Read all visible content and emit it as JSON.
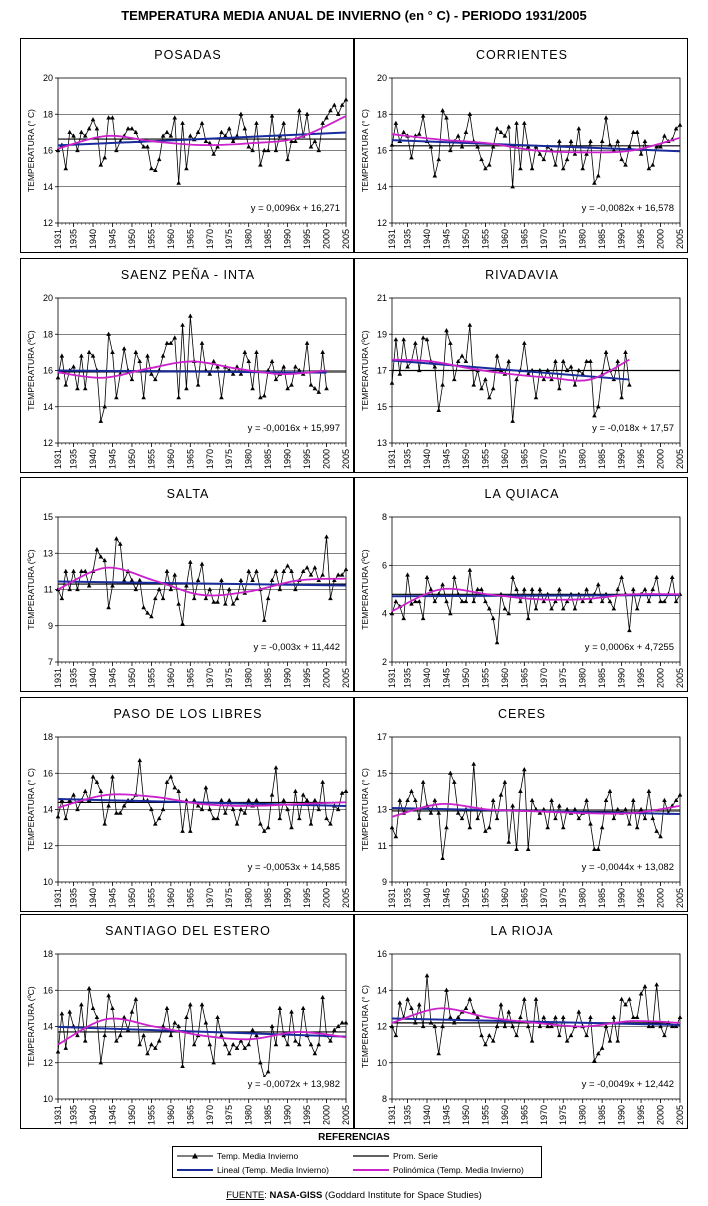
{
  "title": "TEMPERATURA MEDIA ANUAL DE INVIERNO (en ° C) - PERIODO 1931/2005",
  "colors": {
    "series": "#000000",
    "mean": "#000000",
    "linear": "#1a2c9c",
    "poly": "#cc22cc",
    "grid": "#000000"
  },
  "references": {
    "title": "REFERENCIAS",
    "items": [
      {
        "label": "Temp. Media Invierno",
        "style": "triangle-line"
      },
      {
        "label": "Prom. Serie",
        "style": "black-line"
      },
      {
        "label": "Lineal (Temp. Media Invierno)",
        "style": "blue-line"
      },
      {
        "label": "Polinómica (Temp. Media Invierno)",
        "style": "magenta-line"
      }
    ]
  },
  "source": {
    "label": "FUENTE",
    "sep": ": ",
    "org": "NASA-GISS",
    "desc": " (Goddard Institute for Space Studies)"
  },
  "xticks": [
    "1931",
    "1935",
    "1940",
    "1945",
    "1950",
    "1955",
    "1960",
    "1965",
    "1970",
    "1975",
    "1980",
    "1985",
    "1990",
    "1995",
    "2000",
    "2005"
  ],
  "chart_data": [
    {
      "type": "line",
      "title": "POSADAS",
      "ylabel": "TEMPERATURA (° C)",
      "ylim": [
        12,
        20
      ],
      "yticks": [
        12,
        14,
        16,
        18,
        20
      ],
      "equation": "y = 0,0096x + 16,271",
      "x_start": 1931,
      "mean": 16.63,
      "linear": [
        16.28,
        16.99
      ],
      "poly": [
        16.1,
        16.8,
        16.5,
        16.3,
        16.4,
        16.7,
        17.9
      ],
      "values": [
        16.0,
        16.3,
        15.0,
        17.0,
        16.8,
        16.0,
        17.0,
        16.8,
        17.2,
        17.7,
        17.2,
        15.2,
        15.6,
        17.8,
        17.8,
        16.0,
        16.5,
        16.8,
        17.2,
        17.2,
        17.0,
        16.5,
        16.2,
        16.2,
        15.0,
        14.9,
        15.5,
        16.8,
        17.0,
        16.8,
        17.8,
        14.2,
        17.5,
        15.0,
        16.8,
        16.6,
        17.0,
        17.5,
        16.5,
        16.4,
        15.8,
        16.2,
        17.0,
        16.8,
        17.2,
        16.5,
        16.8,
        18.0,
        17.2,
        16.2,
        16.0,
        17.5,
        15.2,
        16.0,
        16.0,
        17.9,
        16.0,
        16.8,
        17.5,
        15.5,
        16.5,
        16.5,
        18.2,
        16.8,
        18.0,
        16.2,
        16.5,
        16.0,
        17.5,
        17.8,
        18.2,
        18.5,
        18.0,
        18.5,
        18.8
      ]
    },
    {
      "type": "line",
      "title": "CORRIENTES",
      "ylabel": "TEMPERATURA (° C)",
      "ylim": [
        12,
        20
      ],
      "yticks": [
        12,
        14,
        16,
        18,
        20
      ],
      "equation": "y = -0,0082x + 16,578",
      "x_start": 1931,
      "mean": 16.26,
      "linear": [
        16.57,
        15.96
      ],
      "poly": [
        16.9,
        16.6,
        16.4,
        16.0,
        15.9,
        16.0,
        16.7
      ],
      "values": [
        16.3,
        17.5,
        16.5,
        17.0,
        16.8,
        15.6,
        16.8,
        16.9,
        17.9,
        16.5,
        16.2,
        14.6,
        15.5,
        18.2,
        17.8,
        16.0,
        16.5,
        16.8,
        16.2,
        17.0,
        18.0,
        16.5,
        16.2,
        15.5,
        15.0,
        15.2,
        16.2,
        17.2,
        17.0,
        16.8,
        17.3,
        14.0,
        17.5,
        15.0,
        17.5,
        16.2,
        15.0,
        16.2,
        15.8,
        15.5,
        16.2,
        16.0,
        15.2,
        16.5,
        15.0,
        15.5,
        16.5,
        15.8,
        17.2,
        15.0,
        15.8,
        16.5,
        14.2,
        14.6,
        16.5,
        17.8,
        16.3,
        16.0,
        16.5,
        15.5,
        15.2,
        16.2,
        17.0,
        17.0,
        15.8,
        16.5,
        15.0,
        15.2,
        16.2,
        16.2,
        16.8,
        16.5,
        16.6,
        17.2,
        17.4
      ]
    },
    {
      "type": "line",
      "title": "SAENZ PEÑA - INTA",
      "ylabel": "TEMPERATURA (ºC)",
      "ylim": [
        12,
        20
      ],
      "yticks": [
        12,
        14,
        16,
        18,
        20
      ],
      "equation": "y = -0,0016x + 15,997",
      "x_start": 1931,
      "mean": 15.92,
      "linear": [
        16.0,
        15.88
      ],
      "poly": [
        15.9,
        15.6,
        16.1,
        16.5,
        16.1,
        15.8,
        16.0
      ],
      "values": [
        15.6,
        16.8,
        15.2,
        16.0,
        16.2,
        15.0,
        16.8,
        15.0,
        17.0,
        16.8,
        16.0,
        13.2,
        14.0,
        18.0,
        17.0,
        14.5,
        15.8,
        17.2,
        16.0,
        15.5,
        17.0,
        16.5,
        14.5,
        16.8,
        15.8,
        15.5,
        16.0,
        16.8,
        17.5,
        17.5,
        17.8,
        14.5,
        18.5,
        15.0,
        19.0,
        16.5,
        15.2,
        17.5,
        16.0,
        15.8,
        16.5,
        16.2,
        14.5,
        16.2,
        16.0,
        15.8,
        16.2,
        15.8,
        17.0,
        16.5,
        15.0,
        17.0,
        14.5,
        14.6,
        16.0,
        16.5,
        15.5,
        15.8,
        16.2,
        15.0,
        15.2,
        16.2,
        16.0,
        15.8,
        17.5,
        15.2,
        15.0,
        14.8,
        17.0,
        15.0
      ]
    },
    {
      "type": "line",
      "title": "RIVADAVIA",
      "ylabel": "TEMPERATURA (ºC)",
      "ylim": [
        13,
        21
      ],
      "yticks": [
        13,
        15,
        17,
        19,
        21
      ],
      "equation": "y = -0,018x + 17,57",
      "x_start": 1931,
      "mean": 17.0,
      "linear": [
        17.55,
        16.5
      ],
      "poly": [
        17.6,
        17.5,
        17.1,
        16.8,
        16.6,
        16.5,
        17.6
      ],
      "values": [
        16.3,
        18.7,
        16.8,
        18.7,
        17.2,
        17.5,
        18.5,
        17.0,
        18.8,
        18.7,
        17.5,
        17.2,
        14.8,
        16.2,
        19.2,
        18.5,
        16.5,
        17.5,
        17.8,
        17.5,
        19.5,
        16.2,
        17.0,
        16.0,
        16.5,
        15.5,
        16.0,
        17.8,
        17.0,
        16.8,
        17.5,
        14.2,
        16.5,
        17.0,
        18.5,
        16.8,
        17.0,
        15.5,
        17.0,
        16.5,
        17.0,
        16.5,
        17.5,
        16.0,
        17.5,
        17.0,
        17.2,
        16.2,
        17.0,
        16.8,
        17.5,
        17.5,
        14.5,
        15.0,
        16.8,
        18.0,
        17.0,
        16.5,
        17.5,
        15.5,
        18.0,
        16.2
      ]
    },
    {
      "type": "line",
      "title": "SALTA",
      "ylabel": "TEMPERATURA (ºC)",
      "ylim": [
        7,
        15
      ],
      "yticks": [
        7,
        9,
        11,
        13,
        15
      ],
      "equation": "y = -0,003x + 11,442",
      "x_start": 1931,
      "mean": 11.3,
      "linear": [
        11.44,
        11.22
      ],
      "poly": [
        11.0,
        12.2,
        11.5,
        10.7,
        10.9,
        11.5,
        11.6
      ],
      "values": [
        11.0,
        10.5,
        12.0,
        11.0,
        12.0,
        11.0,
        12.0,
        12.0,
        11.2,
        12.0,
        13.2,
        12.8,
        12.6,
        10.0,
        11.2,
        13.8,
        13.5,
        11.5,
        12.0,
        11.5,
        11.0,
        11.5,
        10.0,
        9.7,
        9.5,
        10.5,
        11.0,
        10.5,
        12.0,
        11.0,
        11.8,
        10.2,
        9.1,
        11.2,
        12.5,
        10.5,
        11.5,
        12.4,
        10.5,
        11.0,
        10.3,
        10.3,
        11.5,
        10.2,
        11.0,
        10.2,
        10.5,
        11.5,
        10.8,
        12.0,
        11.5,
        12.0,
        11.0,
        9.3,
        10.5,
        11.5,
        12.0,
        11.0,
        12.0,
        12.3,
        12.0,
        11.0,
        11.5,
        12.0,
        12.2,
        11.8,
        12.2,
        11.5,
        11.8,
        13.9,
        10.5,
        11.5,
        11.8,
        11.8,
        12.1
      ]
    },
    {
      "type": "line",
      "title": "LA QUIACA",
      "ylabel": "TEMPERATURA (ºC)",
      "ylim": [
        2,
        8
      ],
      "yticks": [
        2,
        4,
        6,
        8
      ],
      "equation": "y = 0,0006x + 4,7255",
      "x_start": 1931,
      "mean": 4.8,
      "linear": [
        4.72,
        4.77
      ],
      "poly": [
        4.1,
        5.0,
        4.8,
        4.6,
        4.6,
        4.8,
        4.8
      ],
      "values": [
        4.0,
        4.5,
        4.3,
        3.8,
        5.6,
        4.4,
        4.5,
        4.5,
        3.8,
        5.5,
        5.0,
        4.5,
        4.8,
        5.2,
        4.5,
        4.0,
        5.5,
        4.8,
        4.5,
        4.5,
        5.8,
        4.5,
        5.0,
        5.0,
        4.5,
        4.2,
        3.8,
        2.8,
        4.8,
        4.2,
        4.0,
        5.5,
        5.0,
        4.5,
        5.0,
        3.8,
        5.0,
        4.2,
        5.0,
        4.5,
        4.8,
        4.2,
        4.5,
        5.0,
        4.2,
        4.5,
        4.8,
        4.2,
        4.8,
        4.5,
        5.0,
        4.5,
        4.8,
        5.2,
        4.5,
        4.8,
        4.5,
        4.2,
        5.0,
        5.5,
        4.8,
        3.3,
        5.0,
        4.2,
        4.8,
        5.0,
        4.5,
        5.0,
        5.5,
        4.5,
        4.5,
        4.8,
        5.5,
        4.5,
        4.8
      ]
    },
    {
      "type": "line",
      "title": "PASO DE LOS LIBRES",
      "ylabel": "TEMPERATURA (° C)",
      "ylim": [
        10,
        18
      ],
      "yticks": [
        10,
        12,
        14,
        16,
        18
      ],
      "equation": "y = -0,0053x + 14,585",
      "x_start": 1931,
      "mean": 14.39,
      "linear": [
        14.58,
        14.19
      ],
      "poly": [
        14.1,
        14.8,
        14.7,
        14.3,
        14.2,
        14.3,
        14.4
      ],
      "values": [
        13.6,
        14.5,
        13.5,
        14.5,
        14.8,
        14.0,
        14.5,
        15.0,
        14.5,
        15.8,
        15.5,
        15.0,
        13.2,
        14.2,
        15.8,
        13.8,
        13.8,
        14.2,
        14.5,
        14.5,
        14.8,
        16.7,
        14.5,
        14.5,
        14.0,
        13.2,
        13.5,
        14.0,
        15.5,
        15.8,
        15.2,
        15.0,
        12.8,
        14.5,
        12.8,
        14.5,
        14.2,
        14.0,
        15.2,
        14.0,
        13.5,
        13.5,
        14.5,
        13.8,
        14.5,
        14.0,
        13.2,
        14.0,
        13.8,
        14.5,
        14.2,
        14.5,
        13.2,
        12.8,
        13.0,
        14.8,
        16.3,
        13.5,
        14.5,
        14.0,
        13.0,
        15.0,
        13.5,
        14.8,
        14.5,
        13.2,
        14.5,
        14.0,
        15.5,
        13.5,
        13.2,
        14.2,
        14.0,
        14.9,
        15.0
      ]
    },
    {
      "type": "line",
      "title": "CERES",
      "ylabel": "TEMPERATURA (° C)",
      "ylim": [
        9,
        17
      ],
      "yticks": [
        9,
        11,
        13,
        15,
        17
      ],
      "equation": "y = -0,0044x + 13,082",
      "x_start": 1931,
      "mean": 12.92,
      "linear": [
        13.08,
        12.75
      ],
      "poly": [
        12.6,
        13.3,
        13.0,
        12.9,
        12.8,
        12.8,
        13.2
      ],
      "values": [
        12.0,
        11.5,
        13.5,
        12.8,
        13.5,
        14.0,
        13.5,
        12.5,
        14.5,
        13.2,
        12.8,
        13.5,
        12.8,
        10.3,
        12.0,
        15.0,
        14.5,
        12.8,
        12.5,
        13.0,
        12.0,
        15.5,
        12.5,
        13.0,
        11.8,
        12.0,
        13.5,
        12.5,
        13.8,
        14.5,
        11.2,
        13.2,
        10.8,
        14.0,
        15.2,
        10.8,
        13.5,
        13.0,
        12.8,
        13.0,
        12.0,
        13.5,
        12.5,
        13.2,
        12.0,
        13.0,
        12.8,
        13.0,
        12.5,
        12.8,
        13.5,
        12.2,
        10.8,
        10.8,
        12.0,
        13.5,
        14.0,
        12.5,
        13.0,
        12.8,
        13.0,
        12.2,
        13.5,
        12.0,
        13.0,
        12.5,
        14.0,
        12.5,
        11.8,
        11.5,
        13.5,
        12.8,
        13.2,
        13.5,
        13.8
      ]
    },
    {
      "type": "line",
      "title": "SANTIAGO DEL ESTERO",
      "ylabel": "TEMPERATURA (ºC)",
      "ylim": [
        10,
        18
      ],
      "yticks": [
        10,
        12,
        14,
        16,
        18
      ],
      "equation": "y = -0,0072x + 13,982",
      "x_start": 1931,
      "mean": 13.7,
      "linear": [
        13.98,
        13.44
      ],
      "poly": [
        13.0,
        14.4,
        14.0,
        13.5,
        13.3,
        13.7,
        13.4
      ],
      "values": [
        12.6,
        14.7,
        12.8,
        14.8,
        14.0,
        13.5,
        15.2,
        13.2,
        16.1,
        15.0,
        14.5,
        12.0,
        13.5,
        15.7,
        15.0,
        13.2,
        13.5,
        14.5,
        13.8,
        14.8,
        15.5,
        13.0,
        13.5,
        12.5,
        13.0,
        12.8,
        13.2,
        14.0,
        15.0,
        13.5,
        14.2,
        14.0,
        11.8,
        14.5,
        15.2,
        13.0,
        13.5,
        15.2,
        14.2,
        13.0,
        12.0,
        14.5,
        13.5,
        13.0,
        12.5,
        13.0,
        12.8,
        13.2,
        12.8,
        13.0,
        13.8,
        13.5,
        12.0,
        11.2,
        11.5,
        14.0,
        13.0,
        15.0,
        13.5,
        13.0,
        14.8,
        13.2,
        13.0,
        15.0,
        13.5,
        13.0,
        12.5,
        13.0,
        15.6,
        13.5,
        13.2,
        13.8,
        14.0,
        14.2,
        14.2
      ]
    },
    {
      "type": "line",
      "title": "LA RIOJA",
      "ylabel": "TEMPERATURA (° C)",
      "ylim": [
        8,
        16
      ],
      "yticks": [
        8,
        10,
        12,
        14,
        16
      ],
      "equation": "y = -0,0049x + 12,442",
      "x_start": 1931,
      "mean": 12.2,
      "linear": [
        12.44,
        12.08
      ],
      "poly": [
        12.2,
        13.0,
        12.5,
        12.2,
        12.0,
        12.3,
        12.2
      ],
      "values": [
        12.0,
        11.5,
        13.3,
        12.5,
        13.5,
        13.0,
        12.2,
        13.2,
        12.0,
        14.8,
        12.2,
        12.0,
        10.5,
        12.0,
        14.0,
        12.5,
        12.2,
        12.5,
        12.8,
        13.0,
        13.5,
        12.8,
        12.5,
        11.5,
        11.0,
        11.5,
        11.2,
        12.0,
        13.2,
        12.0,
        12.8,
        12.0,
        11.5,
        12.5,
        13.5,
        12.0,
        11.2,
        13.5,
        12.0,
        12.5,
        12.0,
        12.0,
        12.5,
        11.5,
        12.5,
        11.2,
        11.5,
        12.0,
        12.8,
        12.0,
        11.5,
        12.5,
        10.1,
        10.5,
        10.8,
        12.0,
        11.2,
        12.5,
        11.2,
        13.5,
        13.2,
        13.5,
        12.5,
        12.5,
        13.8,
        14.2,
        12.0,
        12.0,
        14.3,
        12.0,
        11.5,
        12.2,
        12.0,
        12.0,
        12.5
      ]
    }
  ]
}
